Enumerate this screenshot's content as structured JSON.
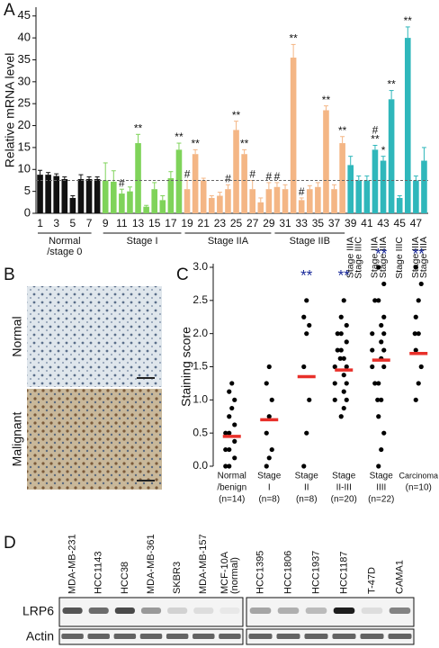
{
  "panels": [
    "A",
    "B",
    "C",
    "D"
  ],
  "chart_data": [
    {
      "type": "bar",
      "y_label": "Relative mRNA level",
      "categories": [
        "1",
        null,
        "3",
        null,
        "5",
        null,
        "7",
        null,
        "9",
        null,
        "11",
        null,
        "13",
        null,
        "15",
        null,
        "17",
        null,
        "19",
        null,
        "21",
        null,
        "23",
        null,
        "25",
        null,
        "27",
        null,
        "29",
        null,
        "31",
        null,
        "33",
        null,
        "35",
        null,
        "37",
        null,
        "39",
        null,
        "41",
        null,
        "43",
        null,
        "45",
        null,
        "47",
        null
      ],
      "values": [
        8.8,
        8.8,
        8.5,
        7.8,
        3.5,
        7.8,
        7.8,
        7.8,
        7.5,
        7.2,
        4.5,
        5,
        16,
        1.5,
        5.5,
        3,
        8,
        14.5,
        5.5,
        13.5,
        7.5,
        3.5,
        4,
        5.5,
        19,
        13.5,
        5.5,
        2.5,
        5.5,
        6,
        5.5,
        35.5,
        3,
        5.5,
        6,
        23.5,
        5.5,
        16,
        11,
        7.5,
        7.5,
        14.5,
        12,
        26,
        3.5,
        40,
        7.5,
        12
      ],
      "errors": [
        1,
        0.5,
        0.5,
        0.5,
        0.5,
        1,
        0.5,
        0.5,
        4,
        2.5,
        1,
        1,
        2,
        0.3,
        1.5,
        1,
        1.5,
        1.5,
        2,
        1,
        0.5,
        0.5,
        0.8,
        1,
        2,
        1,
        2,
        1,
        1.5,
        1,
        1,
        3,
        0.5,
        0.8,
        1,
        1,
        1,
        1.5,
        2,
        1,
        1,
        1,
        1,
        2,
        0.5,
        2.5,
        1,
        3
      ],
      "colors": [
        "#111111",
        "#111111",
        "#111111",
        "#111111",
        "#111111",
        "#111111",
        "#111111",
        "#111111",
        "#7fd35a",
        "#7fd35a",
        "#7fd35a",
        "#7fd35a",
        "#7fd35a",
        "#7fd35a",
        "#7fd35a",
        "#7fd35a",
        "#7fd35a",
        "#7fd35a",
        "#f4b685",
        "#f4b685",
        "#f4b685",
        "#f4b685",
        "#f4b685",
        "#f4b685",
        "#f4b685",
        "#f4b685",
        "#f4b685",
        "#f4b685",
        "#f4b685",
        "#f4b685",
        "#f4b685",
        "#f4b685",
        "#f4b685",
        "#f4b685",
        "#f4b685",
        "#f4b685",
        "#f4b685",
        "#f4b685",
        "#2fb7bb",
        "#2fb7bb",
        "#2fb7bb",
        "#2fb7bb",
        "#2fb7bb",
        "#2fb7bb",
        "#2fb7bb",
        "#2fb7bb",
        "#2fb7bb",
        "#2fb7bb"
      ],
      "annotations": [
        null,
        null,
        null,
        null,
        null,
        null,
        null,
        null,
        null,
        null,
        [
          "#"
        ],
        null,
        [
          "**"
        ],
        null,
        null,
        null,
        null,
        [
          "**"
        ],
        [
          "#"
        ],
        [
          "**"
        ],
        null,
        null,
        null,
        [
          "#"
        ],
        [
          "**"
        ],
        [
          "**"
        ],
        [
          "#"
        ],
        null,
        [
          "#"
        ],
        [
          "#"
        ],
        null,
        [
          "**"
        ],
        [
          "#"
        ],
        null,
        null,
        [
          "**"
        ],
        null,
        [
          "**"
        ],
        null,
        null,
        null,
        [
          "#",
          "**"
        ],
        [
          "*"
        ],
        [
          "**"
        ],
        null,
        [
          "**"
        ],
        null,
        null
      ],
      "reference_line": 7.5,
      "ylim": [
        0,
        47
      ],
      "yticks": [
        0,
        5,
        10,
        15,
        20,
        25,
        30,
        35,
        40,
        45
      ],
      "groups": [
        {
          "lines": [
            "Normal",
            "/stage 0"
          ]
        },
        {
          "lines": [
            "Stage I"
          ]
        },
        {
          "lines": [
            "Stage IIA"
          ]
        },
        {
          "lines": [
            "Stage IIB"
          ]
        }
      ],
      "vertical_labels": [
        "Stage IIIA",
        "Stage IIIC",
        "Stage IIIA",
        "Stage IIIA",
        "Stage IIIC",
        "Stage IIIA",
        "Stage IIIA"
      ]
    },
    {
      "type": "strip",
      "y_label": "Staining score",
      "categories": [
        {
          "lines": [
            "Normal",
            "/benign",
            "(n=14)"
          ]
        },
        {
          "lines": [
            "Stage",
            "I",
            "(n=8)"
          ]
        },
        {
          "lines": [
            "Stage",
            "II",
            "(n=8)"
          ]
        },
        {
          "lines": [
            "Stage",
            "II-III",
            "(n=20)"
          ]
        },
        {
          "lines": [
            "Stage",
            "IIII",
            "(n=22)"
          ]
        },
        {
          "lines": [
            "Carcinoma",
            "(n=10)"
          ]
        }
      ],
      "points": [
        [
          0,
          0,
          0.125,
          0.25,
          0.25,
          0.375,
          0.5,
          0.5,
          0.625,
          0.75,
          0.875,
          1.0,
          1.125,
          1.25
        ],
        [
          0,
          0.125,
          0.25,
          0.5,
          0.75,
          1.0,
          1.25,
          1.5
        ],
        [
          0,
          0.5,
          1.0,
          1.5,
          2.0,
          2.125,
          2.25,
          2.5
        ],
        [
          0.75,
          0.875,
          1.0,
          1.0,
          1.125,
          1.25,
          1.25,
          1.375,
          1.5,
          1.5,
          1.625,
          1.625,
          1.75,
          1.75,
          1.875,
          2.0,
          2.0,
          2.125,
          2.25,
          2.5
        ],
        [
          0,
          0.25,
          0.5,
          0.75,
          1.0,
          1.0,
          1.25,
          1.25,
          1.5,
          1.5,
          1.625,
          1.75,
          1.75,
          1.875,
          2.0,
          2.0,
          2.125,
          2.25,
          2.5,
          2.5,
          2.75,
          3.0
        ],
        [
          1.0,
          1.25,
          1.5,
          1.75,
          2.0,
          2.0,
          2.25,
          2.5,
          2.75,
          3.0
        ]
      ],
      "means": [
        0.45,
        0.7,
        1.35,
        1.45,
        1.6,
        1.7
      ],
      "annotations": [
        null,
        null,
        "**",
        "**",
        "**",
        "**"
      ],
      "point_color": "#000000",
      "mean_color": "#e8302a",
      "annotation_color": "#1a2a9a",
      "ylim": [
        0,
        3.0
      ],
      "yticks": [
        {
          "value": 0,
          "label": "0.0"
        },
        {
          "value": 0.5,
          "label": "0.5"
        },
        {
          "value": 1.0,
          "label": "1.0"
        },
        {
          "value": 1.5,
          "label": "1.5"
        },
        {
          "value": 2.0,
          "label": "2.0"
        },
        {
          "value": 2.5,
          "label": "2.5"
        },
        {
          "value": 3.0,
          "label": "3.0"
        }
      ]
    }
  ],
  "panel_b": {
    "labels": [
      "Normal",
      "Malignant"
    ]
  },
  "panel_d": {
    "lanes_left": [
      {
        "lines": [
          "MDA-MB-231"
        ]
      },
      {
        "lines": [
          "HCC1143"
        ]
      },
      {
        "lines": [
          "HCC38"
        ]
      },
      {
        "lines": [
          "MDA-MB-361"
        ]
      },
      {
        "lines": [
          "SKBR3"
        ]
      },
      {
        "lines": [
          "MDA-MB-157"
        ]
      },
      {
        "lines": [
          "MCF-10A",
          "(normal)"
        ]
      }
    ],
    "lanes_right": [
      {
        "lines": [
          "HCC1395"
        ]
      },
      {
        "lines": [
          "HCC1806"
        ]
      },
      {
        "lines": [
          "HCC1937"
        ]
      },
      {
        "lines": [
          "HCC1187"
        ]
      },
      {
        "lines": [
          "T-47D"
        ]
      },
      {
        "lines": [
          "CAMA1"
        ]
      }
    ],
    "rows": [
      "LRP6",
      "Actin"
    ]
  }
}
